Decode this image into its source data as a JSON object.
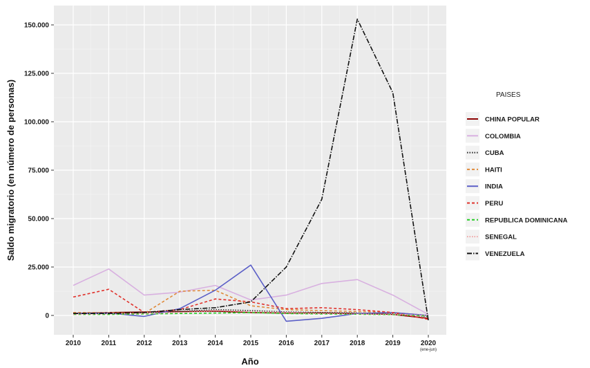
{
  "chart_data": {
    "type": "line",
    "xlabel": "Año",
    "ylabel": "Saldo migratorio (en número de personas)",
    "x": [
      "2010",
      "2011",
      "2012",
      "2013",
      "2014",
      "2015",
      "2016",
      "2017",
      "2018",
      "2019",
      "2020"
    ],
    "x_sublabel_last": "(ene-jun)",
    "ylim": [
      -10000,
      160000
    ],
    "yticks": [
      0,
      25000,
      50000,
      75000,
      100000,
      125000,
      150000
    ],
    "ytick_labels": [
      "0",
      "25.000",
      "50.000",
      "75.000",
      "100.000",
      "125.000",
      "150.000"
    ],
    "legend_title": "PAISES",
    "legend_position": "right",
    "grid": true,
    "panel_background": "#ebebeb",
    "series": [
      {
        "name": "CHINA POPULAR",
        "color": "#8b0000",
        "dash": "solid",
        "values": [
          1000,
          1500,
          1800,
          2000,
          2200,
          1500,
          1200,
          1300,
          1000,
          500,
          -1500
        ]
      },
      {
        "name": "COLOMBIA",
        "color": "#d8b0e0",
        "dash": "solid",
        "values": [
          15500,
          24000,
          10500,
          12000,
          15500,
          8000,
          10500,
          16500,
          18500,
          10500,
          500
        ]
      },
      {
        "name": "CUBA",
        "color": "#222222",
        "dash": "dotted",
        "values": [
          500,
          1000,
          1500,
          2000,
          3000,
          2500,
          1800,
          1500,
          1200,
          800,
          -500
        ]
      },
      {
        "name": "HAITI",
        "color": "#e08a3a",
        "dash": "dashed",
        "values": [
          1500,
          1500,
          1000,
          12500,
          13000,
          5000,
          3000,
          2500,
          2000,
          1500,
          0
        ]
      },
      {
        "name": "INDIA",
        "color": "#5b5fc7",
        "dash": "solid",
        "values": [
          1000,
          1200,
          -500,
          3500,
          13000,
          26000,
          -3000,
          -1500,
          1000,
          1500,
          0
        ]
      },
      {
        "name": "PERU",
        "color": "#e0302a",
        "dash": "dashed",
        "values": [
          9500,
          13500,
          1500,
          3000,
          8500,
          7000,
          3500,
          4000,
          3000,
          1500,
          -2000
        ]
      },
      {
        "name": "REPUBLICA DOMINICANA",
        "color": "#22cc22",
        "dash": "dashed",
        "values": [
          500,
          500,
          800,
          1000,
          1200,
          1500,
          1000,
          800,
          600,
          400,
          -300
        ]
      },
      {
        "name": "SENEGAL",
        "color": "#f0a0a0",
        "dash": "dotted",
        "values": [
          500,
          800,
          1000,
          1500,
          2500,
          2000,
          1500,
          1000,
          800,
          500,
          0
        ]
      },
      {
        "name": "VENEZUELA",
        "color": "#111111",
        "dash": "longdash",
        "values": [
          1000,
          1000,
          1500,
          3000,
          4000,
          7000,
          25000,
          60000,
          153000,
          115000,
          -2500
        ]
      }
    ]
  }
}
